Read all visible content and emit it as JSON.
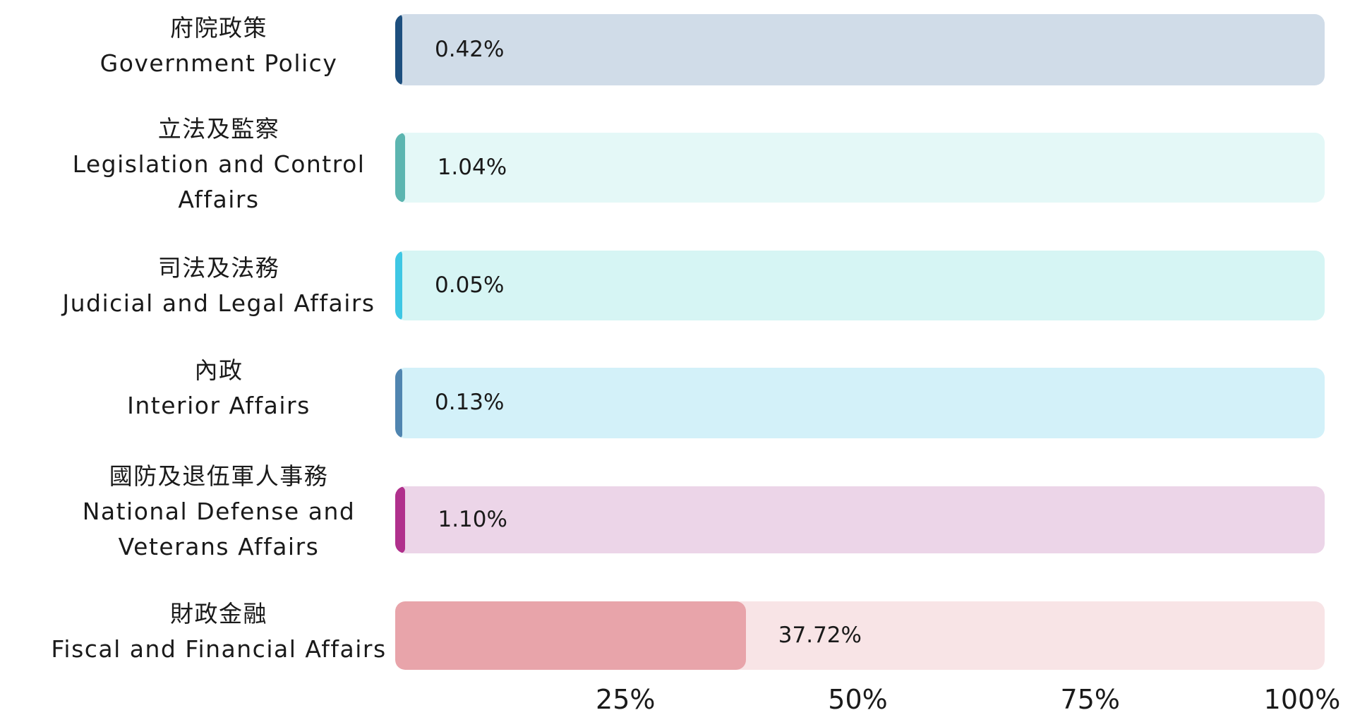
{
  "chart_data": {
    "type": "bar",
    "orientation": "horizontal",
    "categories": [
      {
        "zh": "府院政策",
        "en": [
          "Government Policy"
        ]
      },
      {
        "zh": "立法及監察",
        "en": [
          "Legislation and Control",
          "Affairs"
        ]
      },
      {
        "zh": "司法及法務",
        "en": [
          "Judicial and Legal Affairs"
        ]
      },
      {
        "zh": "內政",
        "en": [
          "Interior Affairs"
        ]
      },
      {
        "zh": "國防及退伍軍人事務",
        "en": [
          "National Defense and",
          "Veterans Affairs"
        ]
      },
      {
        "zh": "財政金融",
        "en": [
          "Fiscal and Financial Affairs"
        ]
      }
    ],
    "values": [
      0.42,
      1.04,
      0.05,
      0.13,
      1.1,
      37.72
    ],
    "value_labels": [
      "0.42%",
      "1.04%",
      "0.05%",
      "0.13%",
      "1.10%",
      "37.72%"
    ],
    "xlim": [
      0,
      100
    ],
    "x_ticks": [
      "25%",
      "50%",
      "75%",
      "100%"
    ],
    "grid": false,
    "legend": "none",
    "colors": {
      "fill": [
        "#1d4f7e",
        "#5cb5b0",
        "#3ec7e4",
        "#5085b0",
        "#b0308c",
        "#e8a4aa"
      ],
      "track": [
        "#d0dce8",
        "#e4f8f7",
        "#d6f5f4",
        "#d3f1f9",
        "#ecd5e8",
        "#f8e4e6"
      ]
    }
  }
}
